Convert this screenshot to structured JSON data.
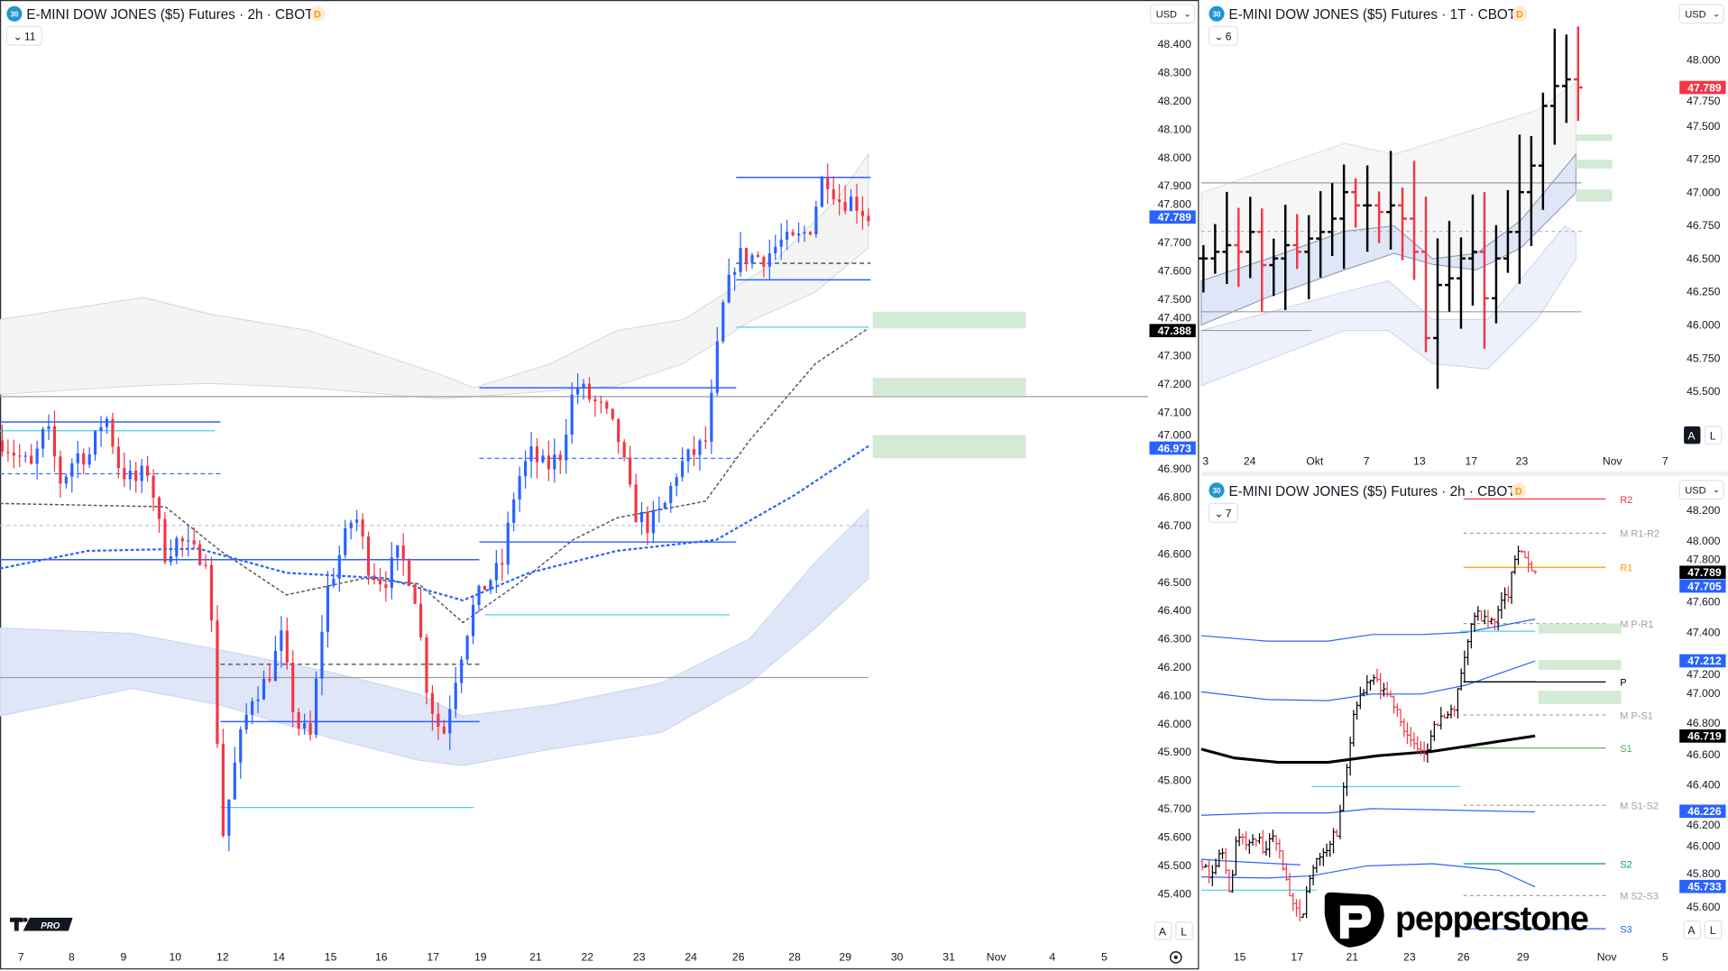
{
  "colors": {
    "up_blue": "#2962ff",
    "down_red": "#f23645",
    "bar_black": "#000000",
    "zone_green": "#d3ead4",
    "band_blue": "#dfe6f8"
  },
  "main": {
    "header": {
      "badge": "30",
      "title": "E-MINI DOW JONES ($5) Futures · 2h · CBOT",
      "flag": "D",
      "indicators": "11"
    },
    "currency": "USD",
    "price_ticks": [
      "48.400",
      "48.300",
      "48.200",
      "48.100",
      "48.000",
      "47.900",
      "47.800",
      "47.700",
      "47.600",
      "47.500",
      "47.400",
      "47.300",
      "47.200",
      "47.100",
      "47.000",
      "46.900",
      "46.800",
      "46.700",
      "46.600",
      "46.500",
      "46.400",
      "46.300",
      "46.200",
      "46.100",
      "46.000",
      "45.900",
      "45.800",
      "45.700",
      "45.600",
      "45.500",
      "45.400"
    ],
    "price_tags": [
      {
        "value": "47.789",
        "color": "#2962ff"
      },
      {
        "value": "47.388",
        "color": "#000000"
      },
      {
        "value": "46.973",
        "color": "#2962ff"
      }
    ],
    "x_labels": [
      "7",
      "8",
      "9",
      "10",
      "12",
      "14",
      "15",
      "16",
      "17",
      "19",
      "21",
      "22",
      "23",
      "24",
      "26",
      "28",
      "29",
      "30",
      "31",
      "Nov",
      "4",
      "5"
    ],
    "auto_label": "A",
    "log_label": "L",
    "logo": "TV PRO"
  },
  "top_right": {
    "header": {
      "badge": "30",
      "title": "E-MINI DOW JONES ($5) Futures · 1T · CBOT",
      "flag": "D",
      "indicators": "6"
    },
    "currency": "USD",
    "price_ticks": [
      "48.000",
      "47.750",
      "47.500",
      "47.250",
      "47.000",
      "46.750",
      "46.500",
      "46.250",
      "46.000",
      "45.750",
      "45.500"
    ],
    "price_tags": [
      {
        "value": "47.789",
        "color": "#f23645"
      }
    ],
    "x_labels": [
      "3",
      "24",
      "Okt",
      "7",
      "13",
      "17",
      "23",
      "Nov",
      "7"
    ],
    "auto_label": "A",
    "log_label": "L"
  },
  "bottom_right": {
    "header": {
      "badge": "30",
      "title": "E-MINI DOW JONES ($5) Futures · 2h · CBOT",
      "flag": "D",
      "indicators": "7"
    },
    "currency": "USD",
    "price_ticks": [
      "48.200",
      "48.000",
      "47.800",
      "47.600",
      "47.400",
      "47.200",
      "47.000",
      "46.800",
      "46.600",
      "46.400",
      "46.200",
      "46.000",
      "45.800",
      "45.600"
    ],
    "price_tags": [
      {
        "value": "47.789",
        "color": "#000000"
      },
      {
        "value": "47.705",
        "color": "#2962ff"
      },
      {
        "value": "47.212",
        "color": "#2962ff"
      },
      {
        "value": "46.719",
        "color": "#000000"
      },
      {
        "value": "46.226",
        "color": "#2962ff"
      },
      {
        "value": "45.733",
        "color": "#2962ff"
      }
    ],
    "pivots": [
      {
        "label": "R2",
        "color": "#f23645"
      },
      {
        "label": "M R1-R2",
        "color": "#a0a0a0"
      },
      {
        "label": "R1",
        "color": "#ff9800"
      },
      {
        "label": "M P-R1",
        "color": "#a0a0a0"
      },
      {
        "label": "P",
        "color": "#000000"
      },
      {
        "label": "M P-S1",
        "color": "#a0a0a0"
      },
      {
        "label": "S1",
        "color": "#4caf50"
      },
      {
        "label": "M S1-S2",
        "color": "#a0a0a0"
      },
      {
        "label": "S2",
        "color": "#089981"
      },
      {
        "label": "M S2-S3",
        "color": "#a0a0a0"
      },
      {
        "label": "S3",
        "color": "#2962ff"
      }
    ],
    "x_labels": [
      "15",
      "17",
      "21",
      "23",
      "26",
      "29",
      "Nov",
      "5"
    ],
    "auto_label": "A",
    "log_label": "L",
    "logo": "pepperstone"
  },
  "chart_data": [
    {
      "type": "candlestick",
      "panel": "main",
      "timeframe": "2h",
      "ylim": [
        45.4,
        48.4
      ],
      "closes": [
        47.0,
        46.95,
        46.9,
        47.05,
        46.85,
        46.95,
        46.95,
        47.1,
        46.9,
        46.85,
        46.9,
        46.6,
        46.65,
        46.6,
        46.6,
        45.6,
        45.9,
        46.1,
        46.15,
        46.3,
        46.0,
        45.95,
        46.45,
        46.6,
        46.75,
        46.55,
        46.5,
        46.6,
        46.5,
        46.1,
        45.95,
        46.2,
        46.4,
        46.5,
        46.55,
        46.85,
        46.95,
        46.9,
        46.95,
        47.2,
        47.15,
        47.1,
        47.0,
        46.75,
        46.7,
        46.75,
        46.9,
        46.95,
        47.0,
        47.45,
        47.65,
        47.65,
        47.65,
        47.7,
        47.7,
        47.75,
        47.95,
        47.85,
        47.85,
        47.789
      ]
    },
    {
      "type": "ohlc",
      "panel": "top_right",
      "timeframe": "1D",
      "ylim": [
        45.4,
        48.2
      ],
      "closes": [
        46.5,
        46.55,
        46.6,
        46.55,
        46.7,
        46.45,
        46.5,
        46.6,
        46.55,
        46.65,
        46.7,
        46.8,
        47.0,
        46.9,
        46.9,
        46.85,
        46.9,
        46.8,
        46.55,
        45.9,
        46.3,
        46.35,
        46.5,
        46.55,
        46.2,
        46.5,
        46.7,
        47.0,
        47.2,
        47.65,
        47.8,
        47.85,
        47.789
      ]
    },
    {
      "type": "ohlc",
      "panel": "bottom_right",
      "timeframe": "2h",
      "ylim": [
        45.5,
        48.3
      ],
      "closes": [
        45.9,
        45.8,
        46.0,
        45.7,
        46.1,
        46.0,
        46.05,
        45.95,
        46.1,
        45.85,
        45.6,
        45.5,
        45.8,
        45.95,
        46.0,
        46.1,
        46.5,
        46.9,
        47.0,
        47.1,
        47.0,
        46.95,
        46.85,
        46.7,
        46.6,
        46.65,
        46.8,
        46.85,
        46.9,
        47.2,
        47.5,
        47.5,
        47.45,
        47.55,
        47.65,
        47.95,
        47.85,
        47.789
      ]
    }
  ]
}
